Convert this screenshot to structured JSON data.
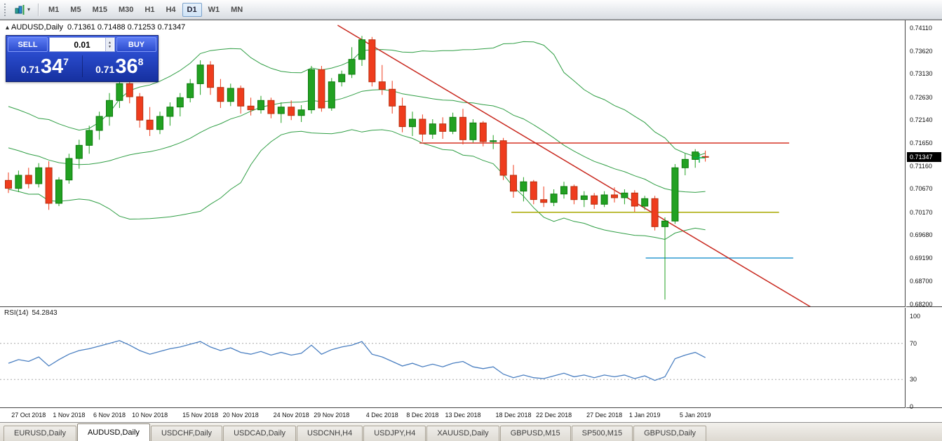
{
  "toolbar": {
    "timeframes": [
      "M1",
      "M5",
      "M15",
      "M30",
      "H1",
      "H4",
      "D1",
      "W1",
      "MN"
    ],
    "selected_timeframe": "D1",
    "dropdown_caret": "▾"
  },
  "chart": {
    "title": "AUDUSD,Daily",
    "ohlc_text": "0.71361 0.71488 0.71253 0.71347",
    "collapse_icon": "▴"
  },
  "trade_panel": {
    "sell_label": "SELL",
    "buy_label": "BUY",
    "lot_size": "0.01",
    "stepper_up": "▲",
    "stepper_down": "▼",
    "sell_price": {
      "prefix": "0.71",
      "big": "34",
      "sup": "7"
    },
    "buy_price": {
      "prefix": "0.71",
      "big": "36",
      "sup": "8"
    }
  },
  "chart_data": {
    "type": "candlestick",
    "symbol": "AUDUSD",
    "timeframe": "Daily",
    "current_price": "0.71347",
    "y_axis": {
      "min": 0.682,
      "max": 0.7411,
      "ticks": [
        "0.74110",
        "0.73620",
        "0.73130",
        "0.72630",
        "0.72140",
        "0.71650",
        "0.71160",
        "0.70670",
        "0.70170",
        "0.69680",
        "0.69190",
        "0.68700",
        "0.68200"
      ]
    },
    "colors": {
      "up": "#22a122",
      "up_border": "#0c7a0c",
      "down": "#ef3c1d",
      "down_border": "#b5300f"
    },
    "candles": [
      [
        0.7085,
        0.7102,
        0.7058,
        0.7068
      ],
      [
        0.7068,
        0.7106,
        0.706,
        0.7096
      ],
      [
        0.7096,
        0.7112,
        0.7068,
        0.7078
      ],
      [
        0.7078,
        0.7122,
        0.707,
        0.7112
      ],
      [
        0.7112,
        0.7126,
        0.7022,
        0.7036
      ],
      [
        0.7036,
        0.7092,
        0.703,
        0.7086
      ],
      [
        0.7086,
        0.7142,
        0.7078,
        0.7132
      ],
      [
        0.7132,
        0.7172,
        0.711,
        0.716
      ],
      [
        0.716,
        0.7202,
        0.7142,
        0.7192
      ],
      [
        0.7192,
        0.7232,
        0.7172,
        0.7222
      ],
      [
        0.7222,
        0.7272,
        0.7202,
        0.7256
      ],
      [
        0.7256,
        0.7302,
        0.724,
        0.7292
      ],
      [
        0.7292,
        0.7306,
        0.725,
        0.7264
      ],
      [
        0.7264,
        0.7272,
        0.7198,
        0.7214
      ],
      [
        0.7214,
        0.7242,
        0.718,
        0.7194
      ],
      [
        0.7194,
        0.7232,
        0.7184,
        0.7222
      ],
      [
        0.7222,
        0.7252,
        0.7202,
        0.7242
      ],
      [
        0.7242,
        0.7272,
        0.7222,
        0.7262
      ],
      [
        0.7262,
        0.7302,
        0.7252,
        0.7292
      ],
      [
        0.7292,
        0.7342,
        0.7268,
        0.7332
      ],
      [
        0.7332,
        0.734,
        0.7268,
        0.7284
      ],
      [
        0.7284,
        0.7302,
        0.724,
        0.7254
      ],
      [
        0.7254,
        0.7292,
        0.7244,
        0.7282
      ],
      [
        0.7282,
        0.7288,
        0.7228,
        0.7244
      ],
      [
        0.7244,
        0.7262,
        0.7224,
        0.7236
      ],
      [
        0.7236,
        0.7266,
        0.7228,
        0.7256
      ],
      [
        0.7256,
        0.7262,
        0.7218,
        0.7228
      ],
      [
        0.7228,
        0.7252,
        0.7208,
        0.7242
      ],
      [
        0.7242,
        0.7256,
        0.7214,
        0.7224
      ],
      [
        0.7224,
        0.7246,
        0.721,
        0.7236
      ],
      [
        0.7236,
        0.733,
        0.7228,
        0.7322
      ],
      [
        0.7322,
        0.733,
        0.7232,
        0.724
      ],
      [
        0.724,
        0.7304,
        0.7234,
        0.7296
      ],
      [
        0.7296,
        0.732,
        0.7286,
        0.7312
      ],
      [
        0.7312,
        0.737,
        0.7304,
        0.7344
      ],
      [
        0.7344,
        0.7394,
        0.733,
        0.7386
      ],
      [
        0.7386,
        0.7392,
        0.7286,
        0.7296
      ],
      [
        0.7296,
        0.7332,
        0.7268,
        0.728
      ],
      [
        0.728,
        0.7298,
        0.7228,
        0.7244
      ],
      [
        0.7244,
        0.7262,
        0.7188,
        0.72
      ],
      [
        0.72,
        0.7232,
        0.718,
        0.7216
      ],
      [
        0.7216,
        0.7226,
        0.7168,
        0.7184
      ],
      [
        0.7184,
        0.7216,
        0.7174,
        0.7206
      ],
      [
        0.7206,
        0.722,
        0.7174,
        0.719
      ],
      [
        0.719,
        0.723,
        0.7184,
        0.722
      ],
      [
        0.722,
        0.7238,
        0.7162,
        0.7172
      ],
      [
        0.7172,
        0.7216,
        0.7166,
        0.7208
      ],
      [
        0.7208,
        0.7212,
        0.7158,
        0.7168
      ],
      [
        0.7168,
        0.7182,
        0.7152,
        0.717
      ],
      [
        0.717,
        0.7176,
        0.7086,
        0.7096
      ],
      [
        0.7096,
        0.7118,
        0.7048,
        0.7062
      ],
      [
        0.7062,
        0.7092,
        0.704,
        0.7082
      ],
      [
        0.7082,
        0.7086,
        0.7034,
        0.7044
      ],
      [
        0.7044,
        0.7072,
        0.7028,
        0.7038
      ],
      [
        0.7038,
        0.7066,
        0.703,
        0.7056
      ],
      [
        0.7056,
        0.7082,
        0.7046,
        0.7072
      ],
      [
        0.7072,
        0.7076,
        0.7034,
        0.7044
      ],
      [
        0.7044,
        0.7062,
        0.7028,
        0.7052
      ],
      [
        0.7052,
        0.7058,
        0.7024,
        0.7034
      ],
      [
        0.7034,
        0.7062,
        0.7028,
        0.7054
      ],
      [
        0.7054,
        0.707,
        0.7038,
        0.7048
      ],
      [
        0.7048,
        0.7066,
        0.7034,
        0.7058
      ],
      [
        0.7058,
        0.7064,
        0.7018,
        0.703
      ],
      [
        0.703,
        0.7052,
        0.7022,
        0.7046
      ],
      [
        0.7046,
        0.7052,
        0.6978,
        0.6986
      ],
      [
        0.6986,
        0.7006,
        0.683,
        0.6998
      ],
      [
        0.6998,
        0.712,
        0.6992,
        0.7112
      ],
      [
        0.7112,
        0.7142,
        0.7096,
        0.713
      ],
      [
        0.713,
        0.7152,
        0.7112,
        0.7146
      ],
      [
        0.71361,
        0.71488,
        0.71253,
        0.71347
      ]
    ],
    "pre_closes": [
      0.7215,
      0.722,
      0.721,
      0.72,
      0.7195,
      0.7185,
      0.719,
      0.7175,
      0.7165,
      0.717,
      0.7155,
      0.7145,
      0.7135,
      0.714,
      0.7125,
      0.7115,
      0.7105,
      0.7095,
      0.7085
    ],
    "bollinger": {
      "period": 20,
      "deviation": 2,
      "color": "#2f9e44"
    },
    "date_labels": [
      {
        "index": 2,
        "label": "27 Oct 2018"
      },
      {
        "index": 6,
        "label": "1 Nov 2018"
      },
      {
        "index": 10,
        "label": "6 Nov 2018"
      },
      {
        "index": 14,
        "label": "10 Nov 2018"
      },
      {
        "index": 19,
        "label": "15 Nov 2018"
      },
      {
        "index": 23,
        "label": "20 Nov 2018"
      },
      {
        "index": 28,
        "label": "24 Nov 2018"
      },
      {
        "index": 32,
        "label": "29 Nov 2018"
      },
      {
        "index": 37,
        "label": "4 Dec 2018"
      },
      {
        "index": 41,
        "label": "8 Dec 2018"
      },
      {
        "index": 45,
        "label": "13 Dec 2018"
      },
      {
        "index": 50,
        "label": "18 Dec 2018"
      },
      {
        "index": 54,
        "label": "22 Dec 2018"
      },
      {
        "index": 59,
        "label": "27 Dec 2018"
      },
      {
        "index": 63,
        "label": "1 Jan 2019"
      },
      {
        "index": 68,
        "label": "5 Jan 2019"
      }
    ],
    "overlays": {
      "trendline": {
        "color": "#c8281e",
        "p1": {
          "index": 32.6,
          "price": 0.7417
        },
        "p2": {
          "index": 80.0,
          "price": 0.6807
        }
      },
      "hlines": [
        {
          "price": 0.7165,
          "from_index": 40.7,
          "to_index": 77.3,
          "color": "#d53325"
        },
        {
          "price": 0.7017,
          "from_index": 49.8,
          "to_index": 76.3,
          "color": "#a8a800"
        },
        {
          "price": 0.6919,
          "from_index": 63.1,
          "to_index": 77.7,
          "color": "#2e9ad0"
        }
      ],
      "marker": {
        "index": 68.4,
        "price": 0.71335,
        "color": "#00b34a"
      }
    },
    "rsi": {
      "label": "RSI(14)",
      "value_text": "54.2843",
      "color": "#4a7fc1",
      "levels": [
        "100",
        "70",
        "30",
        "0"
      ],
      "guide_levels": [
        70,
        30
      ],
      "values": [
        48,
        52,
        50,
        55,
        45,
        52,
        58,
        62,
        64,
        67,
        70,
        73,
        68,
        62,
        58,
        61,
        64,
        66,
        69,
        72,
        66,
        62,
        65,
        60,
        58,
        61,
        57,
        60,
        57,
        59,
        68,
        58,
        63,
        66,
        68,
        72,
        58,
        55,
        50,
        45,
        48,
        44,
        47,
        44,
        48,
        50,
        44,
        42,
        44,
        36,
        32,
        35,
        32,
        31,
        34,
        37,
        33,
        35,
        32,
        35,
        33,
        35,
        31,
        34,
        29,
        33,
        53,
        57,
        60,
        54.2843
      ]
    }
  },
  "tabs": {
    "items": [
      "EURUSD,Daily",
      "AUDUSD,Daily",
      "USDCHF,Daily",
      "USDCAD,Daily",
      "USDCNH,H4",
      "USDJPY,H4",
      "XAUUSD,Daily",
      "GBPUSD,M15",
      "SP500,M15",
      "GBPUSD,Daily"
    ],
    "active": "AUDUSD,Daily"
  }
}
